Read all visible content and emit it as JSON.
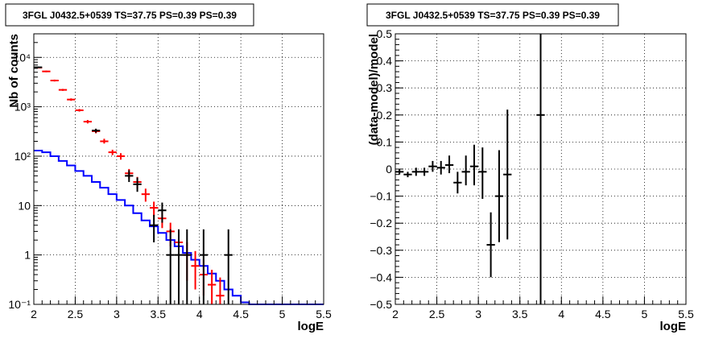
{
  "chart_data": [
    {
      "type": "scatter",
      "title": "3FGL J0432.5+0539 TS=37.75 PS=0.39 PS=0.39",
      "xlabel": "logE",
      "ylabel": "Nb of counts",
      "xlim": [
        2,
        5.5
      ],
      "ylim": [
        0.1,
        30000
      ],
      "yscale": "log",
      "grid": true,
      "x_ticks": [
        2,
        2.5,
        3,
        3.5,
        4,
        4.5,
        5,
        5.5
      ],
      "x_tick_labels": [
        "2",
        "2.5",
        "3",
        "3.5",
        "4",
        "4.5",
        "5",
        "5.5"
      ],
      "y_ticks": [
        0.1,
        1,
        10,
        100,
        1000,
        10000
      ],
      "y_tick_labels": [
        "10⁻¹",
        "1",
        "10",
        "10²",
        "10³",
        "10⁴"
      ],
      "bin_half_width": 0.05,
      "series": [
        {
          "style": "step",
          "color": "#0000ff",
          "x": [
            2.05,
            2.15,
            2.25,
            2.35,
            2.45,
            2.55,
            2.65,
            2.75,
            2.85,
            2.95,
            3.05,
            3.15,
            3.25,
            3.35,
            3.45,
            3.55,
            3.65,
            3.75,
            3.85,
            3.95,
            4.05,
            4.15,
            4.25,
            4.35,
            4.45,
            4.55,
            4.65,
            4.75,
            4.85,
            4.95,
            5.05,
            5.15,
            5.25,
            5.35,
            5.45
          ],
          "y": [
            130,
            120,
            100,
            80,
            65,
            50,
            40,
            30,
            23,
            17,
            13,
            10,
            7,
            5,
            3.8,
            2.8,
            2,
            1.5,
            1.1,
            0.8,
            0.6,
            0.42,
            0.3,
            0.2,
            0.15,
            0.11,
            0.1,
            0.1,
            0.1,
            0.1,
            0.1,
            0.1,
            0.1,
            0.1,
            0.1
          ]
        },
        {
          "style": "points",
          "color": "#ff0000",
          "x": [
            2.05,
            2.15,
            2.25,
            2.35,
            2.45,
            2.55,
            2.65,
            2.75,
            2.85,
            2.95,
            3.05,
            3.15,
            3.25,
            3.35,
            3.45,
            3.55,
            3.65,
            3.75,
            3.85,
            3.95,
            4.05,
            4.15,
            4.25
          ],
          "y": [
            6200,
            5200,
            3400,
            2200,
            1400,
            850,
            500,
            320,
            200,
            120,
            100,
            45,
            30,
            17,
            9,
            5.5,
            3,
            1.8,
            1,
            0.6,
            0.4,
            0.25,
            0.15
          ],
          "y_low": [
            6000,
            5000,
            3250,
            2100,
            1320,
            800,
            460,
            290,
            180,
            105,
            85,
            35,
            22,
            12,
            6,
            3.5,
            1.5,
            0.7,
            0.3,
            0.2,
            0.15,
            0.1,
            0.1
          ],
          "y_high": [
            6400,
            5400,
            3550,
            2300,
            1480,
            900,
            540,
            350,
            225,
            135,
            115,
            55,
            38,
            22,
            12,
            7.5,
            4.5,
            3,
            1.8,
            1.2,
            0.8,
            0.5,
            0.35
          ]
        },
        {
          "style": "points",
          "color": "#000000",
          "x": [
            2.05,
            2.75,
            3.15,
            3.25,
            3.45,
            3.55,
            3.65,
            3.75,
            3.85,
            4.05,
            4.35
          ],
          "y": [
            6300,
            330,
            40,
            27,
            4,
            8,
            1,
            1,
            1,
            1,
            1
          ],
          "y_low": [
            6100,
            300,
            30,
            19,
            1.8,
            4.5,
            0.1,
            0.1,
            0.1,
            0.1,
            0.1
          ],
          "y_high": [
            6500,
            360,
            52,
            37,
            6.5,
            11.5,
            3.3,
            3.3,
            3.3,
            3.3,
            3.3
          ]
        }
      ]
    },
    {
      "type": "scatter",
      "title": "3FGL J0432.5+0539 TS=37.75 PS=0.39 PS=0.39",
      "xlabel": "logE",
      "ylabel": "(data-model)/model",
      "xlim": [
        2,
        5.5
      ],
      "ylim": [
        -0.5,
        0.5
      ],
      "grid": true,
      "x_ticks": [
        2,
        2.5,
        3,
        3.5,
        4,
        4.5,
        5,
        5.5
      ],
      "x_tick_labels": [
        "2",
        "2.5",
        "3",
        "3.5",
        "4",
        "4.5",
        "5",
        "5.5"
      ],
      "y_ticks": [
        -0.5,
        -0.4,
        -0.3,
        -0.2,
        -0.1,
        0,
        0.1,
        0.2,
        0.3,
        0.4,
        0.5
      ],
      "y_tick_labels": [
        "−0.5",
        "−0.4",
        "−0.3",
        "−0.2",
        "−0.1",
        "0",
        "0.1",
        "0.2",
        "0.3",
        "0.4",
        "0.5"
      ],
      "bin_half_width": 0.05,
      "series": [
        {
          "style": "points",
          "color": "#000000",
          "x": [
            2.05,
            2.15,
            2.25,
            2.35,
            2.45,
            2.55,
            2.65,
            2.75,
            2.85,
            2.95,
            3.05,
            3.15,
            3.25,
            3.35,
            3.75
          ],
          "y": [
            -0.01,
            -0.02,
            -0.01,
            -0.01,
            0.01,
            0.005,
            0.015,
            -0.05,
            -0.01,
            0.01,
            -0.01,
            -0.28,
            -0.1,
            -0.02,
            0.2
          ],
          "y_low": [
            -0.02,
            -0.03,
            -0.025,
            -0.025,
            -0.01,
            -0.02,
            -0.015,
            -0.09,
            -0.06,
            -0.06,
            -0.11,
            -0.4,
            -0.27,
            -0.26,
            -0.5
          ],
          "y_high": [
            0.0,
            -0.01,
            0.005,
            0.005,
            0.03,
            0.03,
            0.05,
            -0.01,
            0.05,
            0.09,
            0.08,
            -0.16,
            0.07,
            0.22,
            0.5
          ]
        }
      ]
    }
  ]
}
